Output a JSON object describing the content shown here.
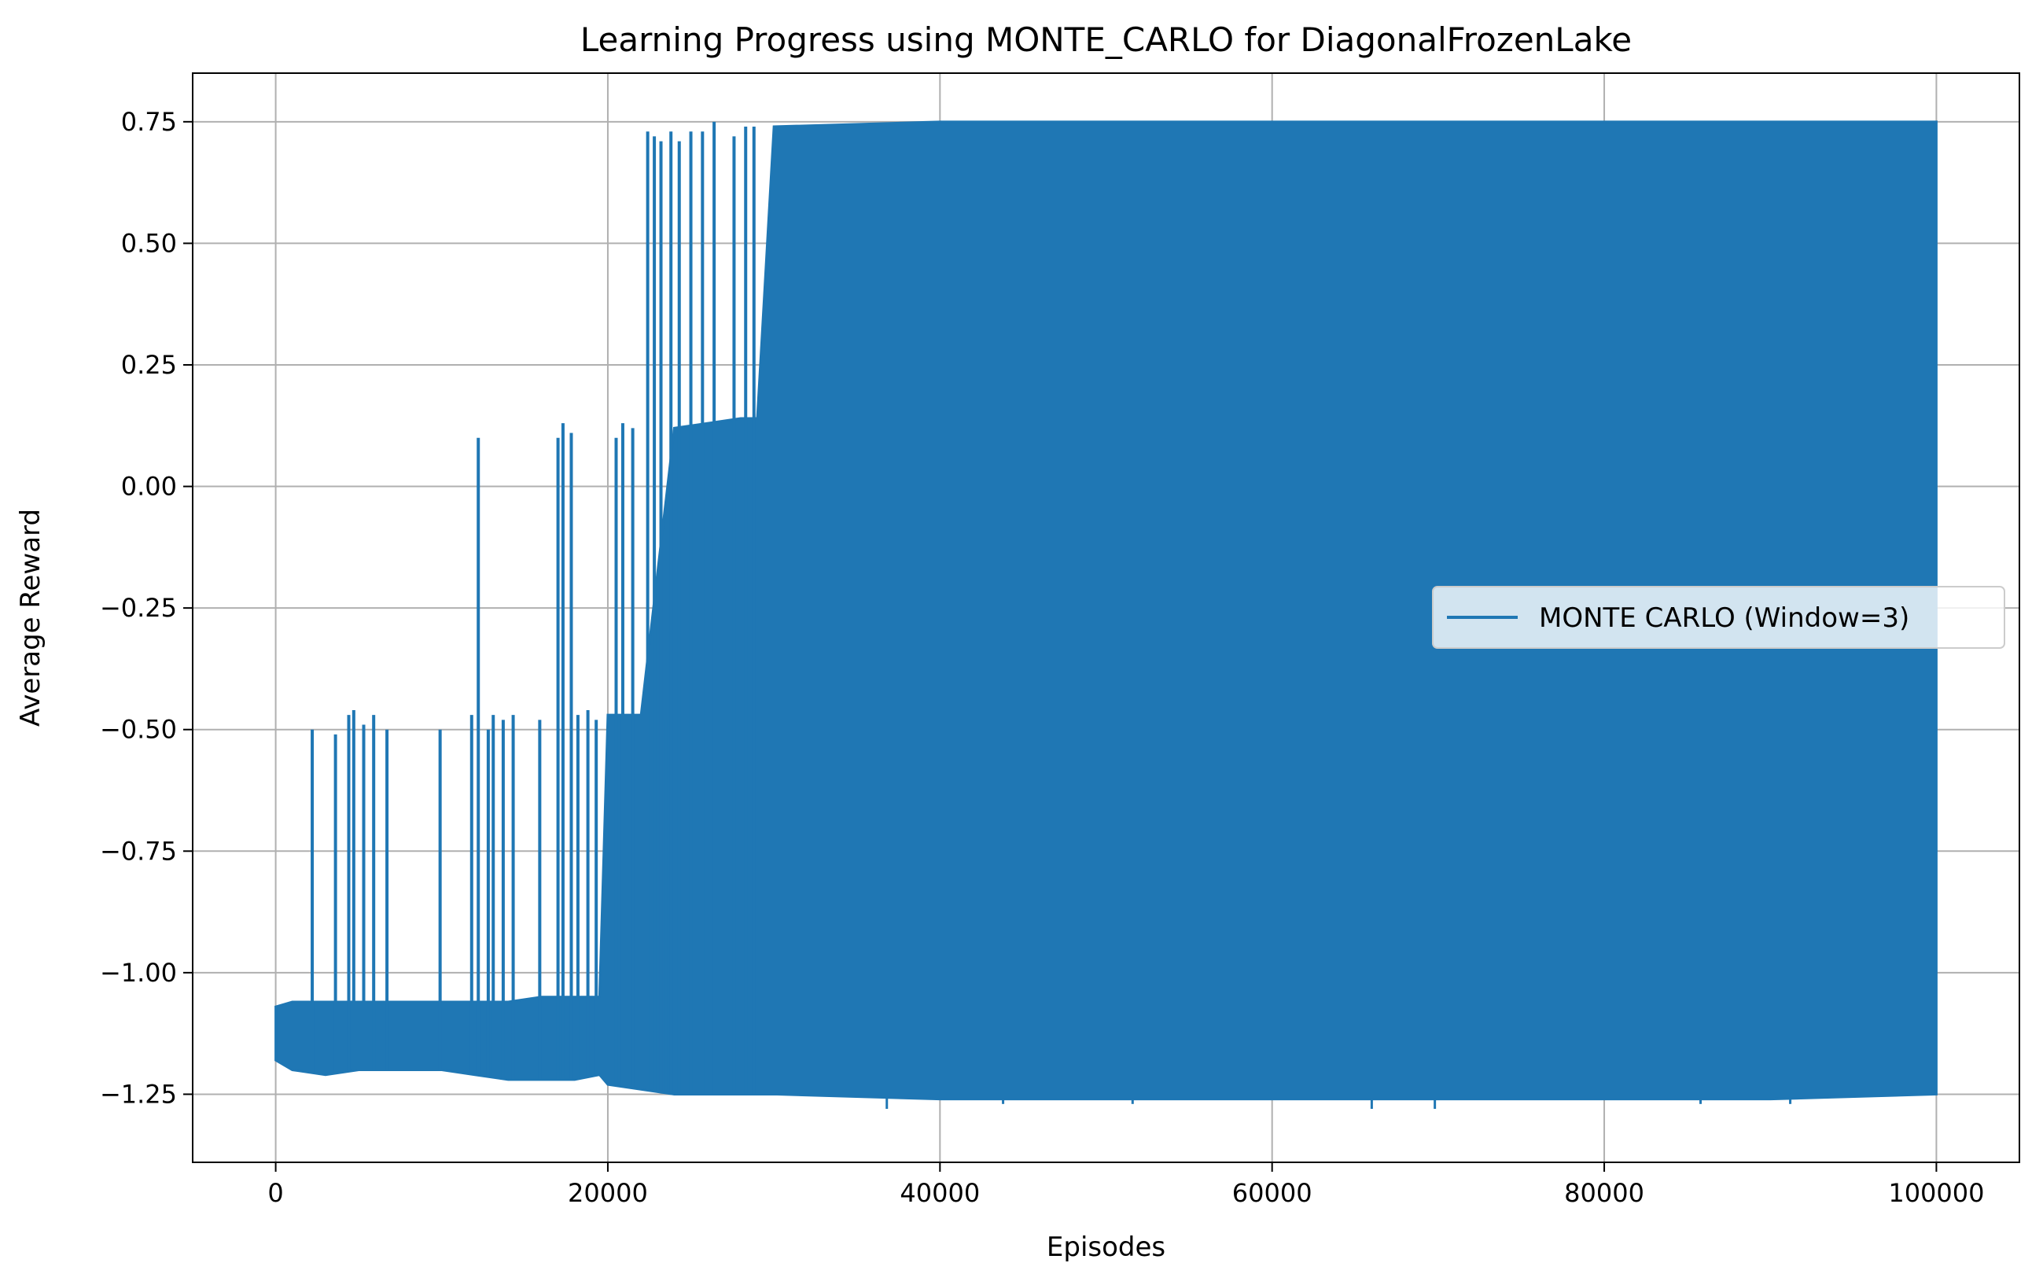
{
  "chart_data": {
    "type": "line",
    "title": "Learning Progress using MONTE_CARLO for DiagonalFrozenLake",
    "xlabel": "Episodes",
    "ylabel": "Average Reward",
    "xlim": [
      -5000,
      105000
    ],
    "ylim": [
      -1.39,
      0.85
    ],
    "x_ticks": [
      0,
      20000,
      40000,
      60000,
      80000,
      100000
    ],
    "x_tick_labels": [
      "0",
      "20000",
      "40000",
      "60000",
      "80000",
      "100000"
    ],
    "y_ticks": [
      0.75,
      0.5,
      0.25,
      0.0,
      -0.25,
      -0.5,
      -0.75,
      -1.0,
      -1.25
    ],
    "y_tick_labels": [
      "0.75",
      "0.50",
      "0.25",
      "0.00",
      "−0.25",
      "−0.50",
      "−0.75",
      "−1.00",
      "−1.25"
    ],
    "grid": true,
    "legend_position": "center-right",
    "series": [
      {
        "name": "MONTE CARLO (Window=3)",
        "color": "#1f77b4",
        "envelope": {
          "x": [
            0,
            1000,
            3000,
            5000,
            8000,
            10000,
            12000,
            14000,
            16000,
            18000,
            19500,
            20000,
            22000,
            24000,
            26000,
            28000,
            29000,
            30000,
            40000,
            50000,
            60000,
            70000,
            80000,
            90000,
            100000
          ],
          "low": [
            -1.18,
            -1.2,
            -1.21,
            -1.2,
            -1.2,
            -1.2,
            -1.21,
            -1.22,
            -1.22,
            -1.22,
            -1.21,
            -1.23,
            -1.24,
            -1.25,
            -1.25,
            -1.25,
            -1.25,
            -1.25,
            -1.26,
            -1.26,
            -1.26,
            -1.26,
            -1.26,
            -1.26,
            -1.25
          ],
          "high": [
            -1.07,
            -1.06,
            -1.06,
            -1.06,
            -1.06,
            -1.06,
            -1.06,
            -1.06,
            -1.05,
            -1.05,
            -1.05,
            -0.47,
            -0.47,
            0.12,
            0.13,
            0.14,
            0.14,
            0.74,
            0.75,
            0.75,
            0.75,
            0.75,
            0.75,
            0.75,
            0.75
          ]
        },
        "spikes": [
          {
            "x": 2200,
            "y": -0.5
          },
          {
            "x": 3600,
            "y": -0.51
          },
          {
            "x": 4400,
            "y": -0.47
          },
          {
            "x": 4700,
            "y": -0.46
          },
          {
            "x": 5300,
            "y": -0.49
          },
          {
            "x": 5900,
            "y": -0.47
          },
          {
            "x": 6700,
            "y": -0.5
          },
          {
            "x": 9900,
            "y": -0.5
          },
          {
            "x": 11800,
            "y": -0.47
          },
          {
            "x": 12200,
            "y": 0.1
          },
          {
            "x": 12800,
            "y": -0.5
          },
          {
            "x": 13100,
            "y": -0.47
          },
          {
            "x": 13700,
            "y": -0.48
          },
          {
            "x": 14300,
            "y": -0.47
          },
          {
            "x": 15900,
            "y": -0.48
          },
          {
            "x": 17000,
            "y": 0.1
          },
          {
            "x": 17300,
            "y": 0.13
          },
          {
            "x": 17800,
            "y": 0.11
          },
          {
            "x": 18200,
            "y": -0.47
          },
          {
            "x": 18800,
            "y": -0.46
          },
          {
            "x": 19300,
            "y": -0.48
          },
          {
            "x": 20500,
            "y": 0.1
          },
          {
            "x": 20900,
            "y": 0.13
          },
          {
            "x": 21500,
            "y": 0.12
          },
          {
            "x": 22400,
            "y": 0.73
          },
          {
            "x": 22800,
            "y": 0.72
          },
          {
            "x": 23200,
            "y": 0.71
          },
          {
            "x": 23500,
            "y": -0.48
          },
          {
            "x": 23800,
            "y": 0.73
          },
          {
            "x": 24300,
            "y": 0.71
          },
          {
            "x": 25000,
            "y": 0.73
          },
          {
            "x": 25700,
            "y": 0.73
          },
          {
            "x": 26400,
            "y": 0.75
          },
          {
            "x": 27600,
            "y": 0.72
          },
          {
            "x": 28300,
            "y": 0.74
          },
          {
            "x": 28800,
            "y": 0.74
          }
        ],
        "dips": [
          {
            "x": 36800,
            "y": -1.28
          },
          {
            "x": 43800,
            "y": -1.27
          },
          {
            "x": 51600,
            "y": -1.27
          },
          {
            "x": 66000,
            "y": -1.28
          },
          {
            "x": 69800,
            "y": -1.28
          },
          {
            "x": 85800,
            "y": -1.27
          },
          {
            "x": 91200,
            "y": -1.27
          }
        ]
      }
    ]
  }
}
